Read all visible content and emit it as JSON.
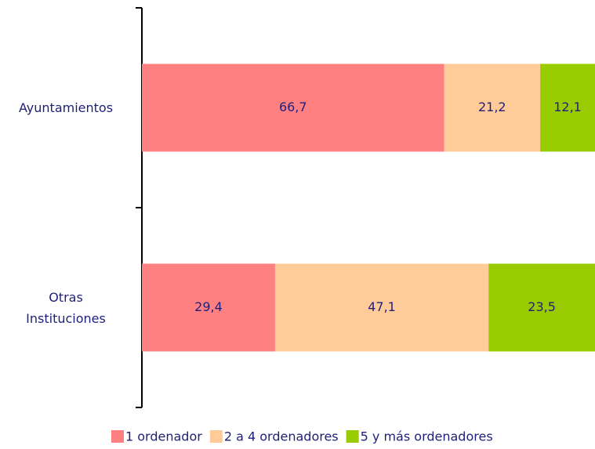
{
  "chart_data": {
    "type": "bar",
    "orientation": "horizontal",
    "stacked": true,
    "categories": [
      "Ayuntamientos",
      "Otras Instituciones"
    ],
    "series": [
      {
        "name": "1 ordenador",
        "color": "#ff8080",
        "values": [
          66.7,
          29.4
        ],
        "value_labels": [
          "66,7",
          "29,4"
        ]
      },
      {
        "name": "2 a 4 ordenadores",
        "color": "#ffcc99",
        "values": [
          21.2,
          47.1
        ],
        "value_labels": [
          "21,2",
          "47,1"
        ]
      },
      {
        "name": "5 y más ordenadores",
        "color": "#99cc00",
        "values": [
          12.1,
          23.5
        ],
        "value_labels": [
          "12,1",
          "23,5"
        ]
      }
    ],
    "legend": "bottom"
  }
}
